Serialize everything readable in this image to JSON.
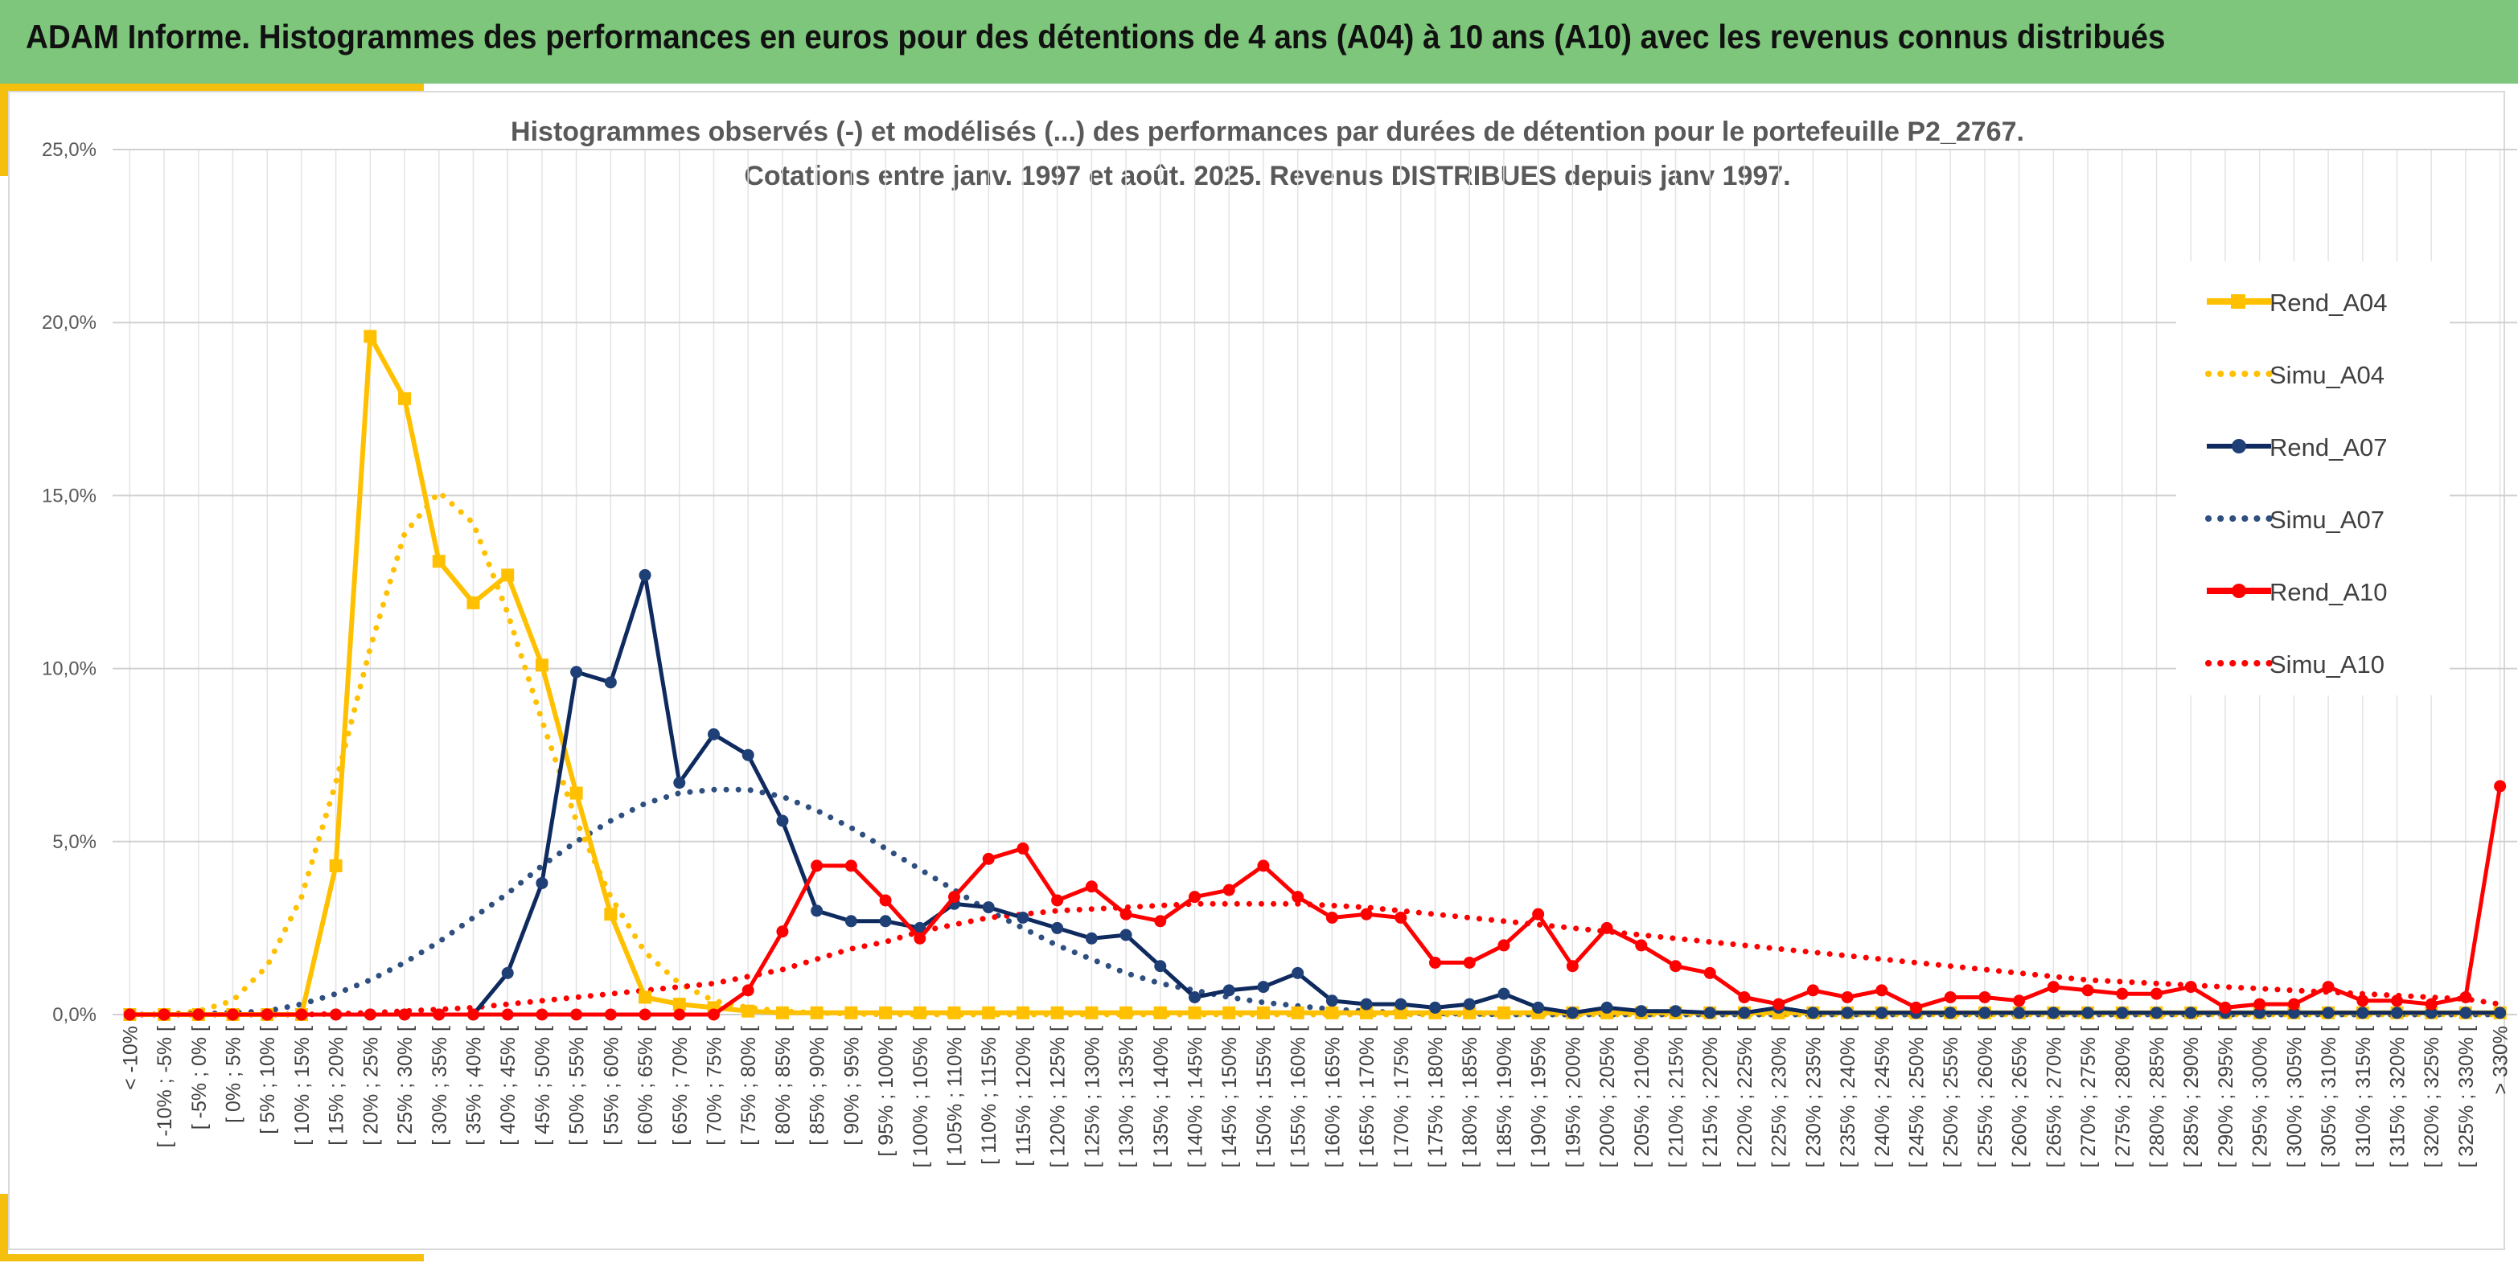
{
  "header": {
    "title": "ADAM Informe. Histogrammes des performances en euros pour des détentions de 4 ans (A04) à 10 ans (A10) avec les revenus connus distribués"
  },
  "colors": {
    "banner": "#7dc67b",
    "accent": "#f5bf0e",
    "A04": "#ffc000",
    "A07": "#0f2a5e",
    "A10": "#ff0000",
    "simu_A07": "#2e4f7f"
  },
  "chart_data": {
    "type": "line",
    "title": "Histogrammes observés (-) et modélisés (...) des performances par durées de détention pour le portefeuille P2_2767.",
    "subtitle": "Cotations entre janv. 1997 et août. 2025. Revenus DISTRIBUES depuis janv 1997.",
    "xlabel": "",
    "ylabel": "",
    "ylim": [
      0,
      25
    ],
    "y_ticks": [
      "0,0%",
      "5,0%",
      "10,0%",
      "15,0%",
      "20,0%",
      "25,0%"
    ],
    "grid": true,
    "legend_position": "right",
    "categories": [
      "< -10%",
      "[ -10% ; -5% [",
      "[ -5% ; 0% [",
      "[ 0% ; 5% [",
      "[ 5% ; 10% [",
      "[ 10% ; 15% [",
      "[ 15% ; 20% [",
      "[ 20% ; 25% [",
      "[ 25% ; 30% [",
      "[ 30% ; 35% [",
      "[ 35% ; 40% [",
      "[ 40% ; 45% [",
      "[ 45% ; 50% [",
      "[ 50% ; 55% [",
      "[ 55% ; 60% [",
      "[ 60% ; 65% [",
      "[ 65% ; 70% [",
      "[ 70% ; 75% [",
      "[ 75% ; 80% [",
      "[ 80% ; 85% [",
      "[ 85% ; 90% [",
      "[ 90% ; 95% [",
      "[ 95% ; 100% [",
      "[ 100% ; 105% [",
      "[ 105% ; 110% [",
      "[ 110% ; 115% [",
      "[ 115% ; 120% [",
      "[ 120% ; 125% [",
      "[ 125% ; 130% [",
      "[ 130% ; 135% [",
      "[ 135% ; 140% [",
      "[ 140% ; 145% [",
      "[ 145% ; 150% [",
      "[ 150% ; 155% [",
      "[ 155% ; 160% [",
      "[ 160% ; 165% [",
      "[ 165% ; 170% [",
      "[ 170% ; 175% [",
      "[ 175% ; 180% [",
      "[ 180% ; 185% [",
      "[ 185% ; 190% [",
      "[ 190% ; 195% [",
      "[ 195% ; 200% [",
      "[ 200% ; 205% [",
      "[ 205% ; 210% [",
      "[ 210% ; 215% [",
      "[ 215% ; 220% [",
      "[ 220% ; 225% [",
      "[ 225% ; 230% [",
      "[ 230% ; 235% [",
      "[ 235% ; 240% [",
      "[ 240% ; 245% [",
      "[ 245% ; 250% [",
      "[ 250% ; 255% [",
      "[ 255% ; 260% [",
      "[ 260% ; 265% [",
      "[ 265% ; 270% [",
      "[ 270% ; 275% [",
      "[ 275% ; 280% [",
      "[ 280% ; 285% [",
      "[ 285% ; 290% [",
      "[ 290% ; 295% [",
      "[ 295% ; 300% [",
      "[ 300% ; 305% [",
      "[ 305% ; 310% [",
      "[ 310% ; 315% [",
      "[ 315% ; 320% [",
      "[ 320% ; 325% [",
      "[ 325% ; 330% [",
      "> 330%"
    ],
    "series": [
      {
        "name": "Rend_A04",
        "style": "solid",
        "marker": "square",
        "color": "#ffc000",
        "values": [
          0,
          0,
          0,
          0,
          0,
          0,
          4.3,
          19.6,
          17.8,
          13.1,
          11.9,
          12.7,
          10.1,
          6.4,
          2.9,
          0.5,
          0.3,
          0.2,
          0.1,
          0.05,
          0.05,
          0.05,
          0.05,
          0.05,
          0.05,
          0.05,
          0.05,
          0.05,
          0.05,
          0.05,
          0.05,
          0.05,
          0.05,
          0.05,
          0.05,
          0.05,
          0.05,
          0.05,
          0.05,
          0.05,
          0.05,
          0.05,
          0.05,
          0.05,
          0.05,
          0.05,
          0.05,
          0.05,
          0.05,
          0.05,
          0.05,
          0.05,
          0.05,
          0.05,
          0.05,
          0.05,
          0.05,
          0.05,
          0.05,
          0.05,
          0.05,
          0.05,
          0.05,
          0.05,
          0.05,
          0.05,
          0.05,
          0.05,
          0.05,
          0.05
        ]
      },
      {
        "name": "Simu_A04",
        "style": "dotted",
        "marker": "none",
        "color": "#ffc000",
        "values": [
          0,
          0,
          0.1,
          0.4,
          1.4,
          3.4,
          6.7,
          10.6,
          13.9,
          15.1,
          14.2,
          11.6,
          8.5,
          5.6,
          3.4,
          1.8,
          0.9,
          0.4,
          0.2,
          0.1,
          0.05,
          0.02,
          0,
          0,
          0,
          0,
          0,
          0,
          0,
          0,
          0,
          0,
          0,
          0,
          0,
          0,
          0,
          0,
          0,
          0,
          0,
          0,
          0,
          0,
          0,
          0,
          0,
          0,
          0,
          0,
          0,
          0,
          0,
          0,
          0,
          0,
          0,
          0,
          0,
          0,
          0,
          0,
          0,
          0,
          0,
          0,
          0,
          0,
          0,
          0
        ]
      },
      {
        "name": "Rend_A07",
        "style": "solid",
        "marker": "circle",
        "color": "#0f2a5e",
        "values": [
          0,
          0,
          0,
          0,
          0,
          0,
          0,
          0,
          0,
          0,
          0,
          1.2,
          3.8,
          9.9,
          9.6,
          12.7,
          6.7,
          8.1,
          7.5,
          5.6,
          3.0,
          2.7,
          2.7,
          2.5,
          3.2,
          3.1,
          2.8,
          2.5,
          2.2,
          2.3,
          1.4,
          0.5,
          0.7,
          0.8,
          1.2,
          0.4,
          0.3,
          0.3,
          0.2,
          0.3,
          0.6,
          0.2,
          0.05,
          0.2,
          0.1,
          0.1,
          0.05,
          0.05,
          0.2,
          0.05,
          0.05,
          0.05,
          0.05,
          0.05,
          0.05,
          0.05,
          0.05,
          0.05,
          0.05,
          0.05,
          0.05,
          0.05,
          0.05,
          0.05,
          0.05,
          0.05,
          0.05,
          0.05,
          0.05,
          0.05
        ]
      },
      {
        "name": "Simu_A07",
        "style": "dotted",
        "marker": "none",
        "color": "#2e4f7f",
        "values": [
          0,
          0,
          0.02,
          0.05,
          0.1,
          0.3,
          0.6,
          1.0,
          1.5,
          2.1,
          2.8,
          3.5,
          4.3,
          5.0,
          5.6,
          6.1,
          6.4,
          6.5,
          6.5,
          6.3,
          5.9,
          5.4,
          4.8,
          4.2,
          3.6,
          3.0,
          2.5,
          2.0,
          1.6,
          1.2,
          0.9,
          0.7,
          0.5,
          0.35,
          0.25,
          0.15,
          0.1,
          0.05,
          0.03,
          0.02,
          0,
          0,
          0,
          0,
          0,
          0,
          0,
          0,
          0,
          0,
          0,
          0,
          0,
          0,
          0,
          0,
          0,
          0,
          0,
          0,
          0,
          0,
          0,
          0,
          0,
          0,
          0,
          0,
          0,
          0
        ]
      },
      {
        "name": "Rend_A10",
        "style": "solid",
        "marker": "circle",
        "color": "#ff0000",
        "values": [
          0,
          0,
          0,
          0,
          0,
          0,
          0,
          0,
          0,
          0,
          0,
          0,
          0,
          0,
          0,
          0,
          0,
          0,
          0.7,
          2.4,
          4.3,
          4.3,
          3.3,
          2.2,
          3.4,
          4.5,
          4.8,
          3.3,
          3.7,
          2.9,
          2.7,
          3.4,
          3.6,
          4.3,
          3.4,
          2.8,
          2.9,
          2.8,
          1.5,
          1.5,
          2.0,
          2.9,
          1.4,
          2.5,
          2.0,
          1.4,
          1.2,
          0.5,
          0.3,
          0.7,
          0.5,
          0.7,
          0.2,
          0.5,
          0.5,
          0.4,
          0.8,
          0.7,
          0.6,
          0.6,
          0.8,
          0.2,
          0.3,
          0.3,
          0.8,
          0.4,
          0.4,
          0.3,
          0.5,
          6.6
        ]
      },
      {
        "name": "Simu_A10",
        "style": "dotted",
        "marker": "none",
        "color": "#ff0000",
        "values": [
          0,
          0,
          0,
          0,
          0,
          0,
          0.02,
          0.05,
          0.1,
          0.15,
          0.2,
          0.3,
          0.4,
          0.5,
          0.6,
          0.7,
          0.8,
          0.9,
          1.1,
          1.3,
          1.6,
          1.9,
          2.1,
          2.4,
          2.6,
          2.8,
          2.9,
          3.0,
          3.05,
          3.1,
          3.15,
          3.2,
          3.2,
          3.2,
          3.2,
          3.15,
          3.1,
          3.0,
          2.9,
          2.8,
          2.7,
          2.6,
          2.5,
          2.4,
          2.3,
          2.2,
          2.1,
          2.0,
          1.9,
          1.8,
          1.7,
          1.6,
          1.5,
          1.4,
          1.3,
          1.2,
          1.1,
          1.0,
          0.95,
          0.9,
          0.85,
          0.8,
          0.75,
          0.7,
          0.65,
          0.6,
          0.55,
          0.5,
          0.45,
          0.3
        ]
      }
    ]
  }
}
